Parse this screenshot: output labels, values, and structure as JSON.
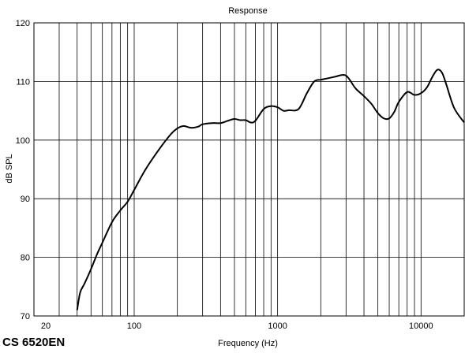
{
  "model_label": "CS 6520EN",
  "chart_data": {
    "type": "line",
    "title": "Response",
    "xlabel": "Frequency (Hz)",
    "ylabel": "dB SPL",
    "x_scale": "log",
    "xlim": [
      20,
      20000
    ],
    "ylim": [
      70,
      120
    ],
    "grid": true,
    "x_tick_labels": [
      "20",
      "100",
      "1000",
      "10000"
    ],
    "x_ticks": [
      20,
      100,
      1000,
      10000
    ],
    "y_ticks": [
      70,
      80,
      90,
      100,
      110,
      120
    ],
    "y_tick_labels": [
      "70",
      "80",
      "90",
      "100",
      "110",
      "120"
    ],
    "series": [
      {
        "color": "#000000",
        "x": [
          40,
          42,
          45,
          50,
          55,
          60,
          70,
          80,
          90,
          100,
          120,
          150,
          180,
          200,
          220,
          250,
          280,
          300,
          350,
          400,
          450,
          500,
          550,
          600,
          650,
          700,
          800,
          900,
          1000,
          1100,
          1200,
          1400,
          1600,
          1800,
          2000,
          2200,
          2500,
          2800,
          3000,
          3200,
          3500,
          4000,
          4500,
          5000,
          5500,
          6000,
          6500,
          7000,
          8000,
          9000,
          10000,
          11000,
          12000,
          13000,
          14000,
          15000,
          17000,
          20000
        ],
        "y": [
          71,
          74,
          75.5,
          78,
          80.5,
          82.5,
          86,
          88,
          89.5,
          91.5,
          95,
          98.5,
          101,
          102,
          102.4,
          102.1,
          102.3,
          102.7,
          102.9,
          102.9,
          103.3,
          103.6,
          103.4,
          103.4,
          103,
          103.3,
          105.3,
          105.8,
          105.6,
          105,
          105.1,
          105.3,
          108,
          110,
          110.3,
          110.5,
          110.8,
          111.1,
          111,
          110.2,
          108.8,
          107.5,
          106.2,
          104.6,
          103.7,
          103.7,
          104.8,
          106.5,
          108.2,
          107.7,
          108,
          109,
          110.8,
          112,
          111.5,
          109.5,
          105.5,
          103
        ]
      }
    ]
  }
}
